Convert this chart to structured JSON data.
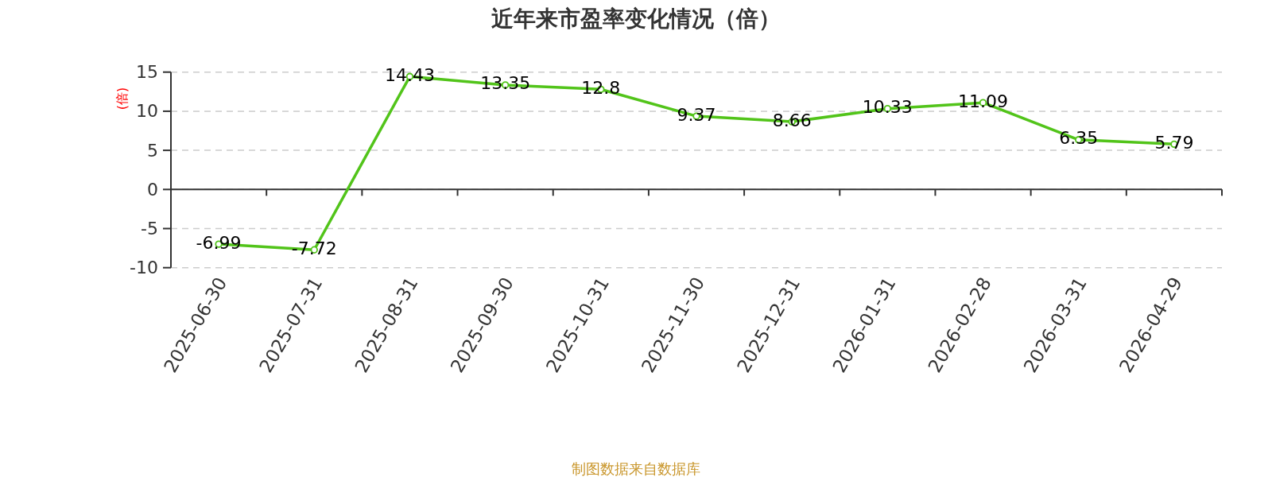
{
  "chart_data": {
    "type": "line",
    "title": "近年来市盈率变化情况（倍）",
    "ylabel": "(倍)",
    "categories": [
      "2025-06-30",
      "2025-07-31",
      "2025-08-31",
      "2025-09-30",
      "2025-10-31",
      "2025-11-30",
      "2025-12-31",
      "2026-01-31",
      "2026-02-28",
      "2026-03-31",
      "2026-04-29"
    ],
    "series": [
      {
        "color": "#52c41a",
        "values": [
          -6.99,
          -7.72,
          14.43,
          13.35,
          12.8,
          9.37,
          8.66,
          10.33,
          11.09,
          6.35,
          5.79
        ]
      }
    ],
    "ylim": [
      -10,
      15
    ],
    "yticks": [
      -10,
      -5,
      0,
      5,
      10,
      15
    ],
    "grid": "y",
    "marker": "circle",
    "line_style": "solid",
    "data_labels": true,
    "annotations": [
      "制图数据来自数据库"
    ]
  }
}
